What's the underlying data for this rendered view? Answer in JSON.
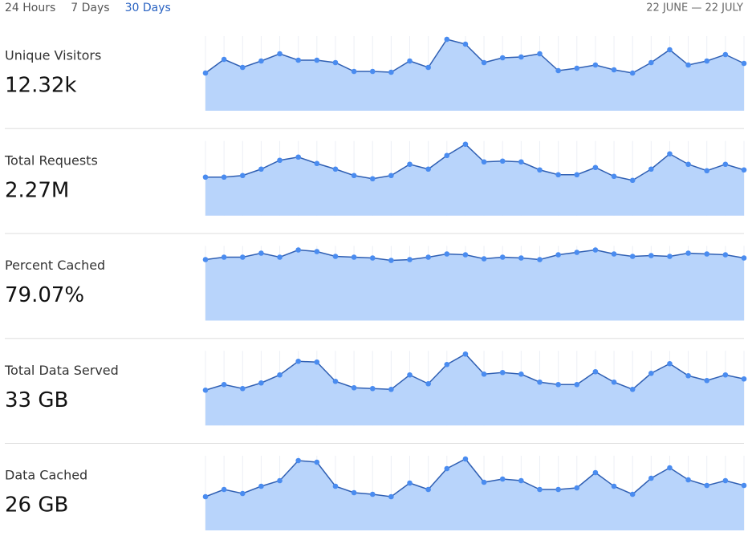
{
  "tabs": [
    "24 Hours",
    "7 Days",
    "30 Days"
  ],
  "active_tab": 2,
  "date_range": "22 JUNE — 22 JULY",
  "chart_data": [
    {
      "type": "area",
      "title": "Unique Visitors",
      "total": "12.32k",
      "ylim": [
        0,
        93
      ],
      "color": "#2f5fb3",
      "fill": "#b8d4fb",
      "values": [
        47,
        64,
        54,
        62,
        71,
        63,
        63,
        60,
        49,
        49,
        48,
        62,
        54,
        89,
        83,
        60,
        66,
        67,
        71,
        50,
        53,
        57,
        51,
        47,
        60,
        76,
        57,
        62,
        70,
        59
      ]
    },
    {
      "type": "area",
      "title": "Total Requests",
      "total": "2.27M",
      "ylim": [
        0,
        93
      ],
      "color": "#2f5fb3",
      "fill": "#b8d4fb",
      "values": [
        48,
        48,
        50,
        58,
        69,
        73,
        65,
        58,
        50,
        46,
        50,
        64,
        58,
        75,
        89,
        67,
        68,
        67,
        57,
        51,
        51,
        60,
        49,
        44,
        58,
        77,
        64,
        56,
        64,
        57
      ]
    },
    {
      "type": "area",
      "title": "Percent Cached",
      "total": "79.07%",
      "ylim": [
        0,
        93
      ],
      "color": "#2f5fb3",
      "fill": "#b8d4fb",
      "values": [
        76,
        79,
        79,
        84,
        79,
        88,
        86,
        80,
        79,
        78,
        75,
        76,
        79,
        83,
        82,
        77,
        79,
        78,
        76,
        82,
        85,
        88,
        83,
        80,
        81,
        80,
        84,
        83,
        82,
        78
      ]
    },
    {
      "type": "area",
      "title": "Total Data Served",
      "total": "33 GB",
      "ylim": [
        0,
        93
      ],
      "color": "#2f5fb3",
      "fill": "#b8d4fb",
      "values": [
        44,
        51,
        46,
        53,
        63,
        80,
        79,
        55,
        47,
        46,
        45,
        63,
        52,
        76,
        89,
        64,
        66,
        64,
        54,
        51,
        51,
        67,
        54,
        45,
        65,
        77,
        62,
        56,
        63,
        58
      ]
    },
    {
      "type": "area",
      "title": "Data Cached",
      "total": "26 GB",
      "ylim": [
        0,
        93
      ],
      "color": "#2f5fb3",
      "fill": "#b8d4fb",
      "values": [
        42,
        51,
        46,
        55,
        62,
        87,
        85,
        55,
        47,
        45,
        42,
        59,
        51,
        77,
        89,
        60,
        64,
        62,
        51,
        51,
        53,
        72,
        55,
        45,
        65,
        78,
        63,
        56,
        62,
        56
      ]
    }
  ]
}
